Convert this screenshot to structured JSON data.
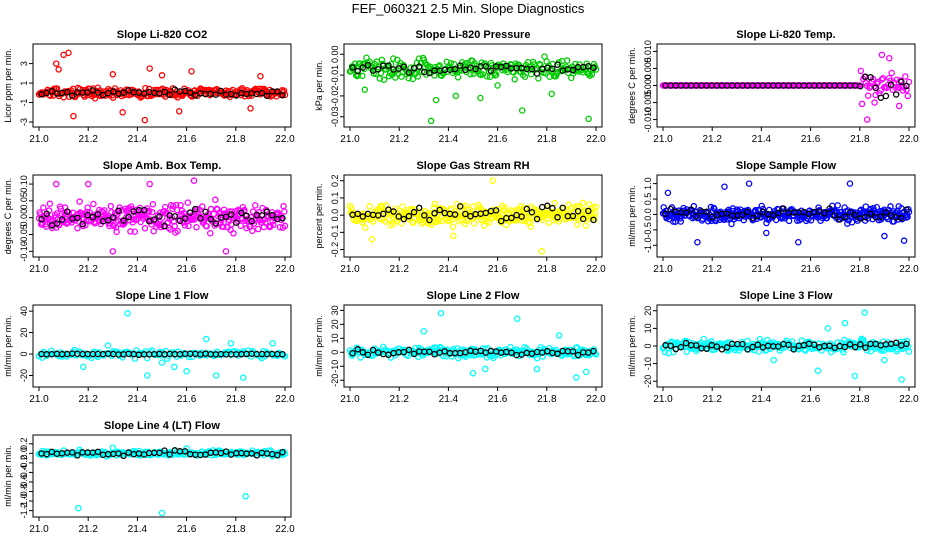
{
  "figure": {
    "title": "FEF_060321  2.5 Min. Slope Diagnostics"
  },
  "chart_data": [
    {
      "id": "co2",
      "type": "scatter",
      "title": "Slope Li-820 CO2",
      "ylabel": "Licor ppm per min.",
      "color": "#ff0000",
      "x_range": [
        21.0,
        22.0
      ],
      "ylim": [
        -3.1,
        4.6
      ],
      "xticks": [
        21.0,
        21.2,
        21.4,
        21.6,
        21.8,
        22.0
      ],
      "xtick_labels": [
        "21.0",
        "21.2",
        "21.4",
        "21.6",
        "21.8",
        "22.0"
      ],
      "yticks": [
        -3,
        -1,
        1,
        3
      ],
      "ytick_labels": [
        "-3",
        "-1",
        "1",
        "3"
      ],
      "trend": 0.0,
      "spread": 0.45,
      "n": 260,
      "black_spread": 0.25,
      "outliers": [
        [
          21.07,
          3.0
        ],
        [
          21.08,
          2.4
        ],
        [
          21.1,
          3.9
        ],
        [
          21.12,
          4.1
        ],
        [
          21.14,
          -2.4
        ],
        [
          21.34,
          -2.0
        ],
        [
          21.45,
          2.5
        ],
        [
          21.5,
          1.8
        ],
        [
          21.62,
          2.2
        ],
        [
          21.3,
          1.9
        ],
        [
          21.43,
          -2.8
        ],
        [
          21.86,
          -1.6
        ],
        [
          21.9,
          1.7
        ],
        [
          21.57,
          -1.9
        ]
      ]
    },
    {
      "id": "pressure",
      "type": "scatter",
      "title": "Slope Li-820 Pressure",
      "ylabel": "kPa per min.",
      "color": "#00cc00",
      "x_range": [
        21.0,
        22.0
      ],
      "ylim": [
        -0.033,
        0.003
      ],
      "xticks": [
        21.0,
        21.2,
        21.4,
        21.6,
        21.8,
        22.0
      ],
      "xtick_labels": [
        "21.0",
        "21.2",
        "21.4",
        "21.6",
        "21.8",
        "22.0"
      ],
      "yticks": [
        -0.03,
        -0.02,
        -0.01,
        0.0
      ],
      "ytick_labels": [
        "-0.03",
        "-0.02",
        "-0.01",
        "0.00"
      ],
      "trend": -0.007,
      "spread": 0.0045,
      "n": 240,
      "black_spread": 0.002,
      "outliers": [
        [
          21.33,
          -0.032
        ],
        [
          21.97,
          -0.031
        ],
        [
          21.7,
          -0.027
        ],
        [
          21.35,
          -0.022
        ],
        [
          21.06,
          -0.017
        ],
        [
          21.43,
          -0.02
        ],
        [
          21.6,
          -0.015
        ],
        [
          21.82,
          -0.019
        ],
        [
          21.53,
          -0.021
        ]
      ]
    },
    {
      "id": "temp",
      "type": "scatter",
      "title": "Slope Li-820 Temp.",
      "ylabel": "degrees C per min.",
      "color": "#ff00ff",
      "x_range": [
        21.0,
        22.0
      ],
      "ylim": [
        -0.011,
        0.011
      ],
      "xticks": [
        21.0,
        21.2,
        21.4,
        21.6,
        21.8,
        22.0
      ],
      "xtick_labels": [
        "21.0",
        "21.2",
        "21.4",
        "21.6",
        "21.8",
        "22.0"
      ],
      "yticks": [
        -0.01,
        -0.005,
        0.0,
        0.005,
        0.01
      ],
      "ytick_labels": [
        "-0.010",
        "-0.005",
        "0.000",
        "0.005",
        "0.010"
      ],
      "trend": 0.0,
      "spread": 0.0,
      "n": 200,
      "black_spread": 0.0,
      "burst_start": 21.8,
      "burst_spread": 0.004,
      "outliers": [
        [
          21.83,
          -0.01
        ],
        [
          21.89,
          0.009
        ],
        [
          21.96,
          -0.006
        ],
        [
          21.92,
          0.008
        ],
        [
          21.86,
          -0.005
        ]
      ]
    },
    {
      "id": "box",
      "type": "scatter",
      "title": "Slope Amb. Box Temp.",
      "ylabel": "degrees C per min.",
      "color": "#ff00ff",
      "x_range": [
        21.0,
        22.0
      ],
      "ylim": [
        -0.105,
        0.115
      ],
      "xticks": [
        21.0,
        21.2,
        21.4,
        21.6,
        21.8,
        22.0
      ],
      "xtick_labels": [
        "21.0",
        "21.2",
        "21.4",
        "21.6",
        "21.8",
        "22.0"
      ],
      "yticks": [
        -0.1,
        -0.05,
        0.0,
        0.05,
        0.1
      ],
      "ytick_labels": [
        "-0.10",
        "-0.05",
        "0.00",
        "0.05",
        "0.10"
      ],
      "trend": 0.0,
      "spread": 0.038,
      "n": 340,
      "black_spread": 0.025,
      "outliers": [
        [
          21.3,
          -0.1
        ],
        [
          21.2,
          0.1
        ],
        [
          21.45,
          0.1
        ],
        [
          21.63,
          0.11
        ],
        [
          21.76,
          -0.1
        ],
        [
          21.07,
          0.1
        ]
      ]
    },
    {
      "id": "rh",
      "type": "scatter",
      "title": "Slope Gas Stream RH",
      "ylabel": "percent per min.",
      "color": "#ffff00",
      "x_range": [
        21.0,
        22.0
      ],
      "ylim": [
        -0.22,
        0.21
      ],
      "xticks": [
        21.0,
        21.2,
        21.4,
        21.6,
        21.8,
        22.0
      ],
      "xtick_labels": [
        "21.0",
        "21.2",
        "21.4",
        "21.6",
        "21.8",
        "22.0"
      ],
      "yticks": [
        -0.2,
        -0.1,
        0.0,
        0.1,
        0.2
      ],
      "ytick_labels": [
        "-0.2",
        "-0.1",
        "0.0",
        "0.1",
        "0.2"
      ],
      "trend": 0.0,
      "spread": 0.055,
      "n": 340,
      "black_spread": 0.04,
      "outliers": [
        [
          21.58,
          0.2
        ],
        [
          21.09,
          -0.14
        ],
        [
          21.78,
          -0.21
        ],
        [
          21.42,
          -0.12
        ]
      ]
    },
    {
      "id": "flow",
      "type": "scatter",
      "title": "Slope Sample Flow",
      "ylabel": "ml/min per min.",
      "color": "#0000ff",
      "x_range": [
        21.0,
        22.0
      ],
      "ylim": [
        -1.25,
        1.15
      ],
      "xticks": [
        21.0,
        21.2,
        21.4,
        21.6,
        21.8,
        22.0
      ],
      "xtick_labels": [
        "21.0",
        "21.2",
        "21.4",
        "21.6",
        "21.8",
        "22.0"
      ],
      "yticks": [
        -1.0,
        -0.5,
        0.0,
        0.5,
        1.0
      ],
      "ytick_labels": [
        "-1.0",
        "-0.5",
        "0.0",
        "0.5",
        "1.0"
      ],
      "trend": 0.0,
      "spread": 0.22,
      "n": 360,
      "black_spread": 0.15,
      "outliers": [
        [
          21.14,
          -0.9
        ],
        [
          21.35,
          1.0
        ],
        [
          21.76,
          1.0
        ],
        [
          21.55,
          -0.9
        ],
        [
          21.9,
          -0.7
        ],
        [
          21.98,
          -0.85
        ],
        [
          21.02,
          0.7
        ],
        [
          21.25,
          0.9
        ],
        [
          21.42,
          -0.6
        ]
      ]
    },
    {
      "id": "line1",
      "type": "scatter",
      "title": "Slope Line 1 Flow",
      "ylabel": "ml/min per min.",
      "color": "#00ffff",
      "x_range": [
        21.0,
        22.0
      ],
      "ylim": [
        -27,
        42
      ],
      "xticks": [
        21.0,
        21.2,
        21.4,
        21.6,
        21.8,
        22.0
      ],
      "xtick_labels": [
        "21.0",
        "21.2",
        "21.4",
        "21.6",
        "21.8",
        "22.0"
      ],
      "yticks": [
        -20,
        0,
        20,
        40
      ],
      "ytick_labels": [
        "-20",
        "0",
        "20",
        "40"
      ],
      "trend": 0.0,
      "spread": 3.0,
      "n": 160,
      "black_spread": 0.5,
      "outliers": [
        [
          21.36,
          38
        ],
        [
          21.18,
          -12
        ],
        [
          21.44,
          -20
        ],
        [
          21.55,
          -12
        ],
        [
          21.68,
          14
        ],
        [
          21.78,
          10
        ],
        [
          21.83,
          -22
        ],
        [
          21.95,
          10
        ],
        [
          21.6,
          -16
        ],
        [
          21.72,
          -20
        ],
        [
          21.28,
          8
        ],
        [
          21.5,
          -8
        ]
      ]
    },
    {
      "id": "line2",
      "type": "scatter",
      "title": "Slope Line 2 Flow",
      "ylabel": "ml/min per min.",
      "color": "#00ffff",
      "x_range": [
        21.0,
        22.0
      ],
      "ylim": [
        -22,
        31
      ],
      "xticks": [
        21.0,
        21.2,
        21.4,
        21.6,
        21.8,
        22.0
      ],
      "xtick_labels": [
        "21.0",
        "21.2",
        "21.4",
        "21.6",
        "21.8",
        "22.0"
      ],
      "yticks": [
        -20,
        -10,
        0,
        10,
        20,
        30
      ],
      "ytick_labels": [
        "-20",
        "-10",
        "0",
        "10",
        "20",
        "30"
      ],
      "trend": 0.0,
      "spread": 3.5,
      "n": 260,
      "black_spread": 2.0,
      "outliers": [
        [
          21.37,
          28
        ],
        [
          21.5,
          -15
        ],
        [
          21.68,
          24
        ],
        [
          21.76,
          -12
        ],
        [
          21.92,
          -18
        ],
        [
          21.96,
          -14
        ],
        [
          21.3,
          15
        ],
        [
          21.55,
          -12
        ],
        [
          21.85,
          12
        ]
      ]
    },
    {
      "id": "line3",
      "type": "scatter",
      "title": "Slope Line 3 Flow",
      "ylabel": "ml/min per min.",
      "color": "#00ffff",
      "x_range": [
        21.0,
        22.0
      ],
      "ylim": [
        -21,
        21
      ],
      "xticks": [
        21.0,
        21.2,
        21.4,
        21.6,
        21.8,
        22.0
      ],
      "xtick_labels": [
        "21.0",
        "21.2",
        "21.4",
        "21.6",
        "21.8",
        "22.0"
      ],
      "yticks": [
        -20,
        -10,
        0,
        10,
        20
      ],
      "ytick_labels": [
        "-20",
        "-10",
        "0",
        "10",
        "20"
      ],
      "trend": 0.0,
      "spread": 3.0,
      "n": 260,
      "black_spread": 2.0,
      "outliers": [
        [
          21.82,
          19
        ],
        [
          21.78,
          -17
        ],
        [
          21.97,
          -19
        ],
        [
          21.63,
          -14
        ],
        [
          21.67,
          10
        ],
        [
          21.9,
          -8
        ],
        [
          21.74,
          13
        ],
        [
          21.45,
          -8
        ]
      ]
    },
    {
      "id": "line4",
      "type": "scatter",
      "title": "Slope Line 4 (LT) Flow",
      "ylabel": "ml/min per min.",
      "color": "#00ffff",
      "x_range": [
        21.0,
        22.0
      ],
      "ylim": [
        -1.25,
        0.3
      ],
      "xticks": [
        21.0,
        21.2,
        21.4,
        21.6,
        21.8,
        22.0
      ],
      "xtick_labels": [
        "21.0",
        "21.2",
        "21.4",
        "21.6",
        "21.8",
        "22.0"
      ],
      "yticks": [
        -1.2,
        -1.0,
        -0.8,
        -0.6,
        -0.4,
        -0.2,
        0.0,
        0.2
      ],
      "ytick_labels": [
        "-1.2",
        "-1.0",
        "-0.8",
        "-0.6",
        "-0.4",
        "-0.2",
        "0.0",
        "0.2"
      ],
      "trend": 0.0,
      "spread": 0.05,
      "n": 220,
      "black_spread": 0.05,
      "outliers": [
        [
          21.16,
          -1.15
        ],
        [
          21.5,
          -1.25
        ],
        [
          21.84,
          -0.9
        ],
        [
          21.6,
          0.1
        ],
        [
          21.3,
          0.12
        ]
      ]
    }
  ]
}
